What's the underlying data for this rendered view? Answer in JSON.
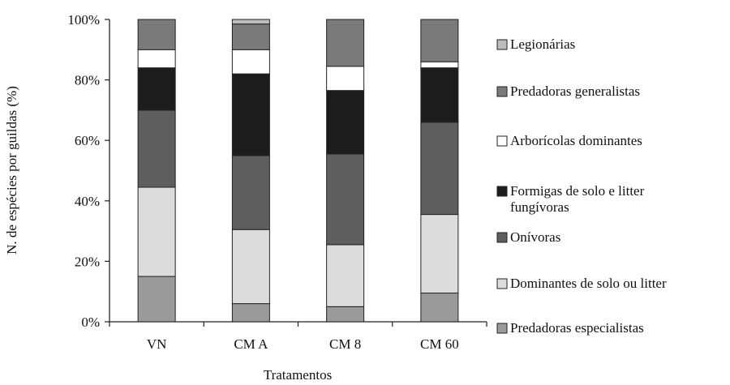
{
  "chart_data": {
    "type": "bar",
    "stacked": true,
    "normalized_percent": true,
    "categories": [
      "VN",
      "CM A",
      "CM 8",
      "CM 60"
    ],
    "xlabel": "Tratamentos",
    "ylabel": "N. de espécies por guildas (%)",
    "ylim": [
      0,
      100
    ],
    "yticks": [
      "0%",
      "20%",
      "40%",
      "60%",
      "80%",
      "100%"
    ],
    "legend_position": "right",
    "series": [
      {
        "name": "Predadoras especialistas",
        "color": "#9a9a9a",
        "values": [
          15,
          6,
          5,
          9.5
        ]
      },
      {
        "name": "Dominantes de solo ou litter",
        "color": "#dcdcdc",
        "values": [
          29.5,
          24.5,
          20.5,
          26
        ]
      },
      {
        "name": "Onívoras",
        "color": "#5e5e5e",
        "values": [
          25.5,
          24.5,
          30,
          30.5
        ]
      },
      {
        "name": "Formigas de solo e litter fungívoras",
        "color": "#1c1c1c",
        "values": [
          14,
          27,
          21,
          18
        ]
      },
      {
        "name": "Arborícolas dominantes",
        "color": "#ffffff",
        "values": [
          6,
          8,
          8,
          2
        ]
      },
      {
        "name": "Predadoras generalistas",
        "color": "#7a7a7a",
        "values": [
          10,
          8.5,
          15.5,
          14
        ]
      },
      {
        "name": "Legionárias",
        "color": "#bdbdbd",
        "values": [
          0,
          1.5,
          0,
          0
        ]
      }
    ],
    "legend_order": [
      {
        "label": "Legionárias",
        "series_index": 6
      },
      {
        "label": "Predadoras generalistas",
        "series_index": 5
      },
      {
        "label": "Arborícolas dominantes",
        "series_index": 4
      },
      {
        "label": "Formigas de solo e litter\nfungívoras",
        "series_index": 3
      },
      {
        "label": "Onívoras",
        "series_index": 2
      },
      {
        "label": "Dominantes de solo ou litter",
        "series_index": 1
      },
      {
        "label": "Predadoras especialistas",
        "series_index": 0
      }
    ]
  }
}
